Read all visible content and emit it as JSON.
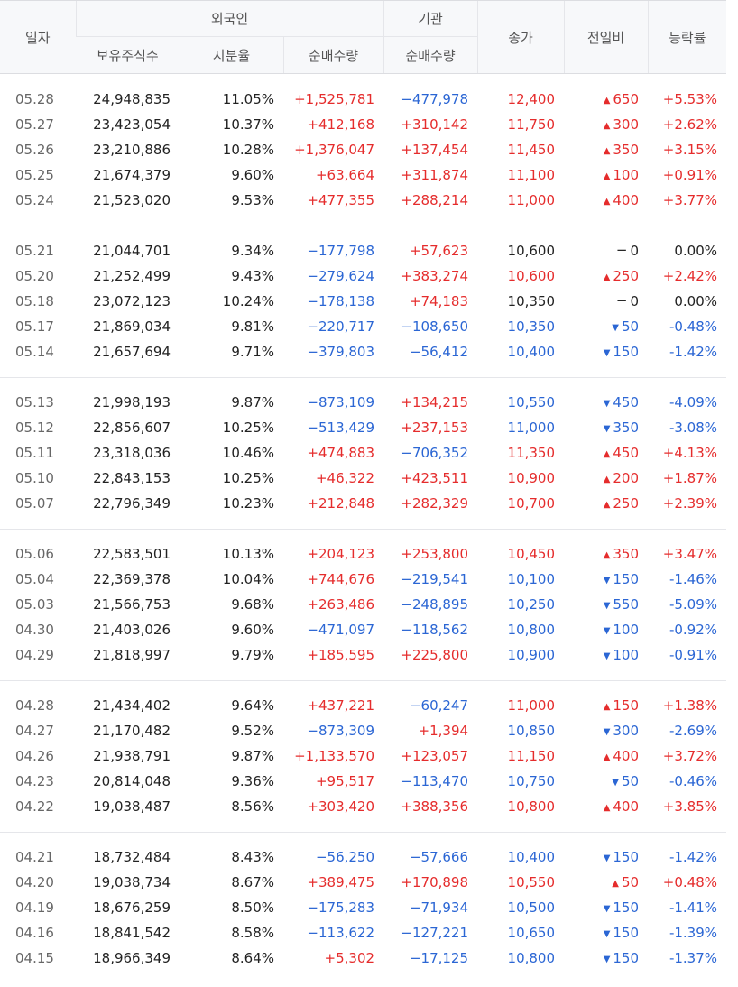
{
  "header": {
    "date": "일자",
    "foreign": "외국인",
    "institution": "기관",
    "holdings": "보유주식수",
    "ratio": "지분율",
    "foreign_net": "순매수량",
    "inst_net": "순매수량",
    "close": "종가",
    "change": "전일비",
    "rate": "등락률"
  },
  "colors": {
    "up": "#e52c2c",
    "down": "#2b66d4",
    "flat": "#222222"
  },
  "groups": [
    {
      "rows": [
        {
          "date": "05.28",
          "holdings": "24,948,835",
          "ratio": "11.05%",
          "fnet": "+1,525,781",
          "inet": "−477,978",
          "close": "12,400",
          "arrow": "▲",
          "diff": "650",
          "rate": "+5.53%"
        },
        {
          "date": "05.27",
          "holdings": "23,423,054",
          "ratio": "10.37%",
          "fnet": "+412,168",
          "inet": "+310,142",
          "close": "11,750",
          "arrow": "▲",
          "diff": "300",
          "rate": "+2.62%"
        },
        {
          "date": "05.26",
          "holdings": "23,210,886",
          "ratio": "10.28%",
          "fnet": "+1,376,047",
          "inet": "+137,454",
          "close": "11,450",
          "arrow": "▲",
          "diff": "350",
          "rate": "+3.15%"
        },
        {
          "date": "05.25",
          "holdings": "21,674,379",
          "ratio": "9.60%",
          "fnet": "+63,664",
          "inet": "+311,874",
          "close": "11,100",
          "arrow": "▲",
          "diff": "100",
          "rate": "+0.91%"
        },
        {
          "date": "05.24",
          "holdings": "21,523,020",
          "ratio": "9.53%",
          "fnet": "+477,355",
          "inet": "+288,214",
          "close": "11,000",
          "arrow": "▲",
          "diff": "400",
          "rate": "+3.77%"
        }
      ]
    },
    {
      "rows": [
        {
          "date": "05.21",
          "holdings": "21,044,701",
          "ratio": "9.34%",
          "fnet": "−177,798",
          "inet": "+57,623",
          "close": "10,600",
          "arrow": "−",
          "diff": "0",
          "rate": "0.00%"
        },
        {
          "date": "05.20",
          "holdings": "21,252,499",
          "ratio": "9.43%",
          "fnet": "−279,624",
          "inet": "+383,274",
          "close": "10,600",
          "arrow": "▲",
          "diff": "250",
          "rate": "+2.42%"
        },
        {
          "date": "05.18",
          "holdings": "23,072,123",
          "ratio": "10.24%",
          "fnet": "−178,138",
          "inet": "+74,183",
          "close": "10,350",
          "arrow": "−",
          "diff": "0",
          "rate": "0.00%"
        },
        {
          "date": "05.17",
          "holdings": "21,869,034",
          "ratio": "9.81%",
          "fnet": "−220,717",
          "inet": "−108,650",
          "close": "10,350",
          "arrow": "▼",
          "diff": "50",
          "rate": "-0.48%"
        },
        {
          "date": "05.14",
          "holdings": "21,657,694",
          "ratio": "9.71%",
          "fnet": "−379,803",
          "inet": "−56,412",
          "close": "10,400",
          "arrow": "▼",
          "diff": "150",
          "rate": "-1.42%"
        }
      ]
    },
    {
      "rows": [
        {
          "date": "05.13",
          "holdings": "21,998,193",
          "ratio": "9.87%",
          "fnet": "−873,109",
          "inet": "+134,215",
          "close": "10,550",
          "arrow": "▼",
          "diff": "450",
          "rate": "-4.09%"
        },
        {
          "date": "05.12",
          "holdings": "22,856,607",
          "ratio": "10.25%",
          "fnet": "−513,429",
          "inet": "+237,153",
          "close": "11,000",
          "arrow": "▼",
          "diff": "350",
          "rate": "-3.08%"
        },
        {
          "date": "05.11",
          "holdings": "23,318,036",
          "ratio": "10.46%",
          "fnet": "+474,883",
          "inet": "−706,352",
          "close": "11,350",
          "arrow": "▲",
          "diff": "450",
          "rate": "+4.13%"
        },
        {
          "date": "05.10",
          "holdings": "22,843,153",
          "ratio": "10.25%",
          "fnet": "+46,322",
          "inet": "+423,511",
          "close": "10,900",
          "arrow": "▲",
          "diff": "200",
          "rate": "+1.87%"
        },
        {
          "date": "05.07",
          "holdings": "22,796,349",
          "ratio": "10.23%",
          "fnet": "+212,848",
          "inet": "+282,329",
          "close": "10,700",
          "arrow": "▲",
          "diff": "250",
          "rate": "+2.39%"
        }
      ]
    },
    {
      "rows": [
        {
          "date": "05.06",
          "holdings": "22,583,501",
          "ratio": "10.13%",
          "fnet": "+204,123",
          "inet": "+253,800",
          "close": "10,450",
          "arrow": "▲",
          "diff": "350",
          "rate": "+3.47%"
        },
        {
          "date": "05.04",
          "holdings": "22,369,378",
          "ratio": "10.04%",
          "fnet": "+744,676",
          "inet": "−219,541",
          "close": "10,100",
          "arrow": "▼",
          "diff": "150",
          "rate": "-1.46%"
        },
        {
          "date": "05.03",
          "holdings": "21,566,753",
          "ratio": "9.68%",
          "fnet": "+263,486",
          "inet": "−248,895",
          "close": "10,250",
          "arrow": "▼",
          "diff": "550",
          "rate": "-5.09%"
        },
        {
          "date": "04.30",
          "holdings": "21,403,026",
          "ratio": "9.60%",
          "fnet": "−471,097",
          "inet": "−118,562",
          "close": "10,800",
          "arrow": "▼",
          "diff": "100",
          "rate": "-0.92%"
        },
        {
          "date": "04.29",
          "holdings": "21,818,997",
          "ratio": "9.79%",
          "fnet": "+185,595",
          "inet": "+225,800",
          "close": "10,900",
          "arrow": "▼",
          "diff": "100",
          "rate": "-0.91%"
        }
      ]
    },
    {
      "rows": [
        {
          "date": "04.28",
          "holdings": "21,434,402",
          "ratio": "9.64%",
          "fnet": "+437,221",
          "inet": "−60,247",
          "close": "11,000",
          "arrow": "▲",
          "diff": "150",
          "rate": "+1.38%"
        },
        {
          "date": "04.27",
          "holdings": "21,170,482",
          "ratio": "9.52%",
          "fnet": "−873,309",
          "inet": "+1,394",
          "close": "10,850",
          "arrow": "▼",
          "diff": "300",
          "rate": "-2.69%"
        },
        {
          "date": "04.26",
          "holdings": "21,938,791",
          "ratio": "9.87%",
          "fnet": "+1,133,570",
          "inet": "+123,057",
          "close": "11,150",
          "arrow": "▲",
          "diff": "400",
          "rate": "+3.72%"
        },
        {
          "date": "04.23",
          "holdings": "20,814,048",
          "ratio": "9.36%",
          "fnet": "+95,517",
          "inet": "−113,470",
          "close": "10,750",
          "arrow": "▼",
          "diff": "50",
          "rate": "-0.46%"
        },
        {
          "date": "04.22",
          "holdings": "19,038,487",
          "ratio": "8.56%",
          "fnet": "+303,420",
          "inet": "+388,356",
          "close": "10,800",
          "arrow": "▲",
          "diff": "400",
          "rate": "+3.85%"
        }
      ]
    },
    {
      "rows": [
        {
          "date": "04.21",
          "holdings": "18,732,484",
          "ratio": "8.43%",
          "fnet": "−56,250",
          "inet": "−57,666",
          "close": "10,400",
          "arrow": "▼",
          "diff": "150",
          "rate": "-1.42%"
        },
        {
          "date": "04.20",
          "holdings": "19,038,734",
          "ratio": "8.67%",
          "fnet": "+389,475",
          "inet": "+170,898",
          "close": "10,550",
          "arrow": "▲",
          "diff": "50",
          "rate": "+0.48%"
        },
        {
          "date": "04.19",
          "holdings": "18,676,259",
          "ratio": "8.50%",
          "fnet": "−175,283",
          "inet": "−71,934",
          "close": "10,500",
          "arrow": "▼",
          "diff": "150",
          "rate": "-1.41%"
        },
        {
          "date": "04.16",
          "holdings": "18,841,542",
          "ratio": "8.58%",
          "fnet": "−113,622",
          "inet": "−127,221",
          "close": "10,650",
          "arrow": "▼",
          "diff": "150",
          "rate": "-1.39%"
        },
        {
          "date": "04.15",
          "holdings": "18,966,349",
          "ratio": "8.64%",
          "fnet": "+5,302",
          "inet": "−17,125",
          "close": "10,800",
          "arrow": "▼",
          "diff": "150",
          "rate": "-1.37%"
        }
      ]
    }
  ]
}
